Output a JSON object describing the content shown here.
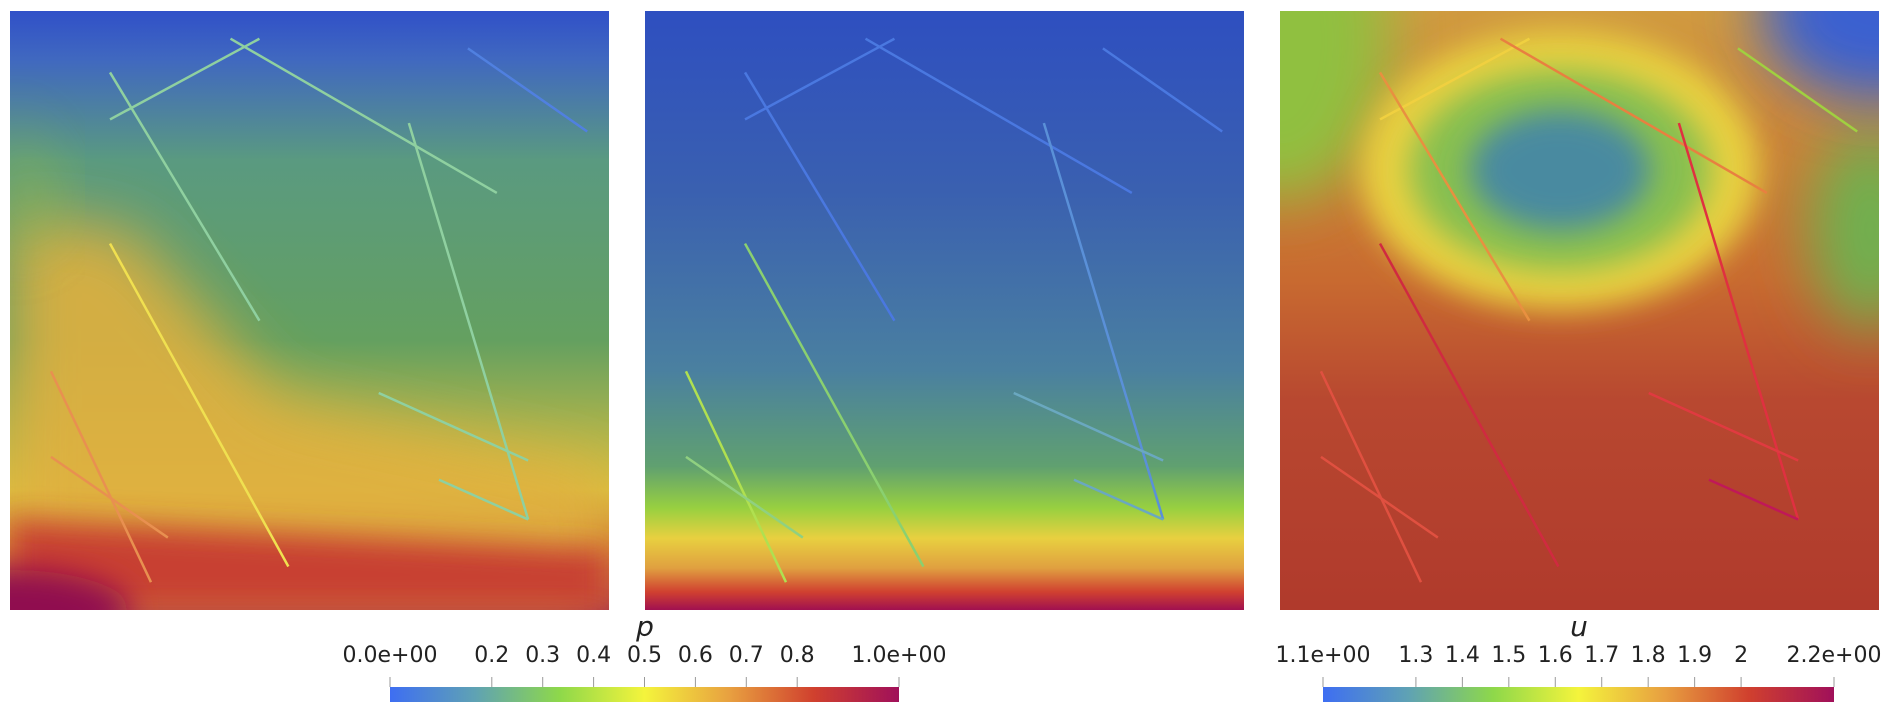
{
  "chart_data": [
    {
      "type": "colorbar",
      "title": "p",
      "xlim": [
        0,
        1
      ],
      "xticks": [
        {
          "value": 0,
          "label": "0.0e+00"
        },
        0.2,
        0.3,
        0.4,
        0.5,
        0.6,
        0.7,
        0.8,
        {
          "value": 1,
          "label": "1.0e+00"
        }
      ],
      "colormap": [
        "#3e6ef2",
        "#5fa2b4",
        "#8ed84a",
        "#f4f43c",
        "#e8a040",
        "#d0402e",
        "#a0105a"
      ]
    },
    {
      "type": "colorbar",
      "title": "u",
      "xlim": [
        1.1,
        2.2
      ],
      "xticks": [
        {
          "value": 1.1,
          "label": "1.1e+00"
        },
        1.3,
        1.4,
        1.5,
        1.6,
        1.7,
        1.8,
        1.9,
        2,
        {
          "value": 2.2,
          "label": "2.2e+00"
        }
      ],
      "colormap": [
        "#3e6ef2",
        "#5fa2b4",
        "#8ed84a",
        "#f4f43c",
        "#e8a040",
        "#d0402e",
        "#a0105a"
      ]
    }
  ]
}
